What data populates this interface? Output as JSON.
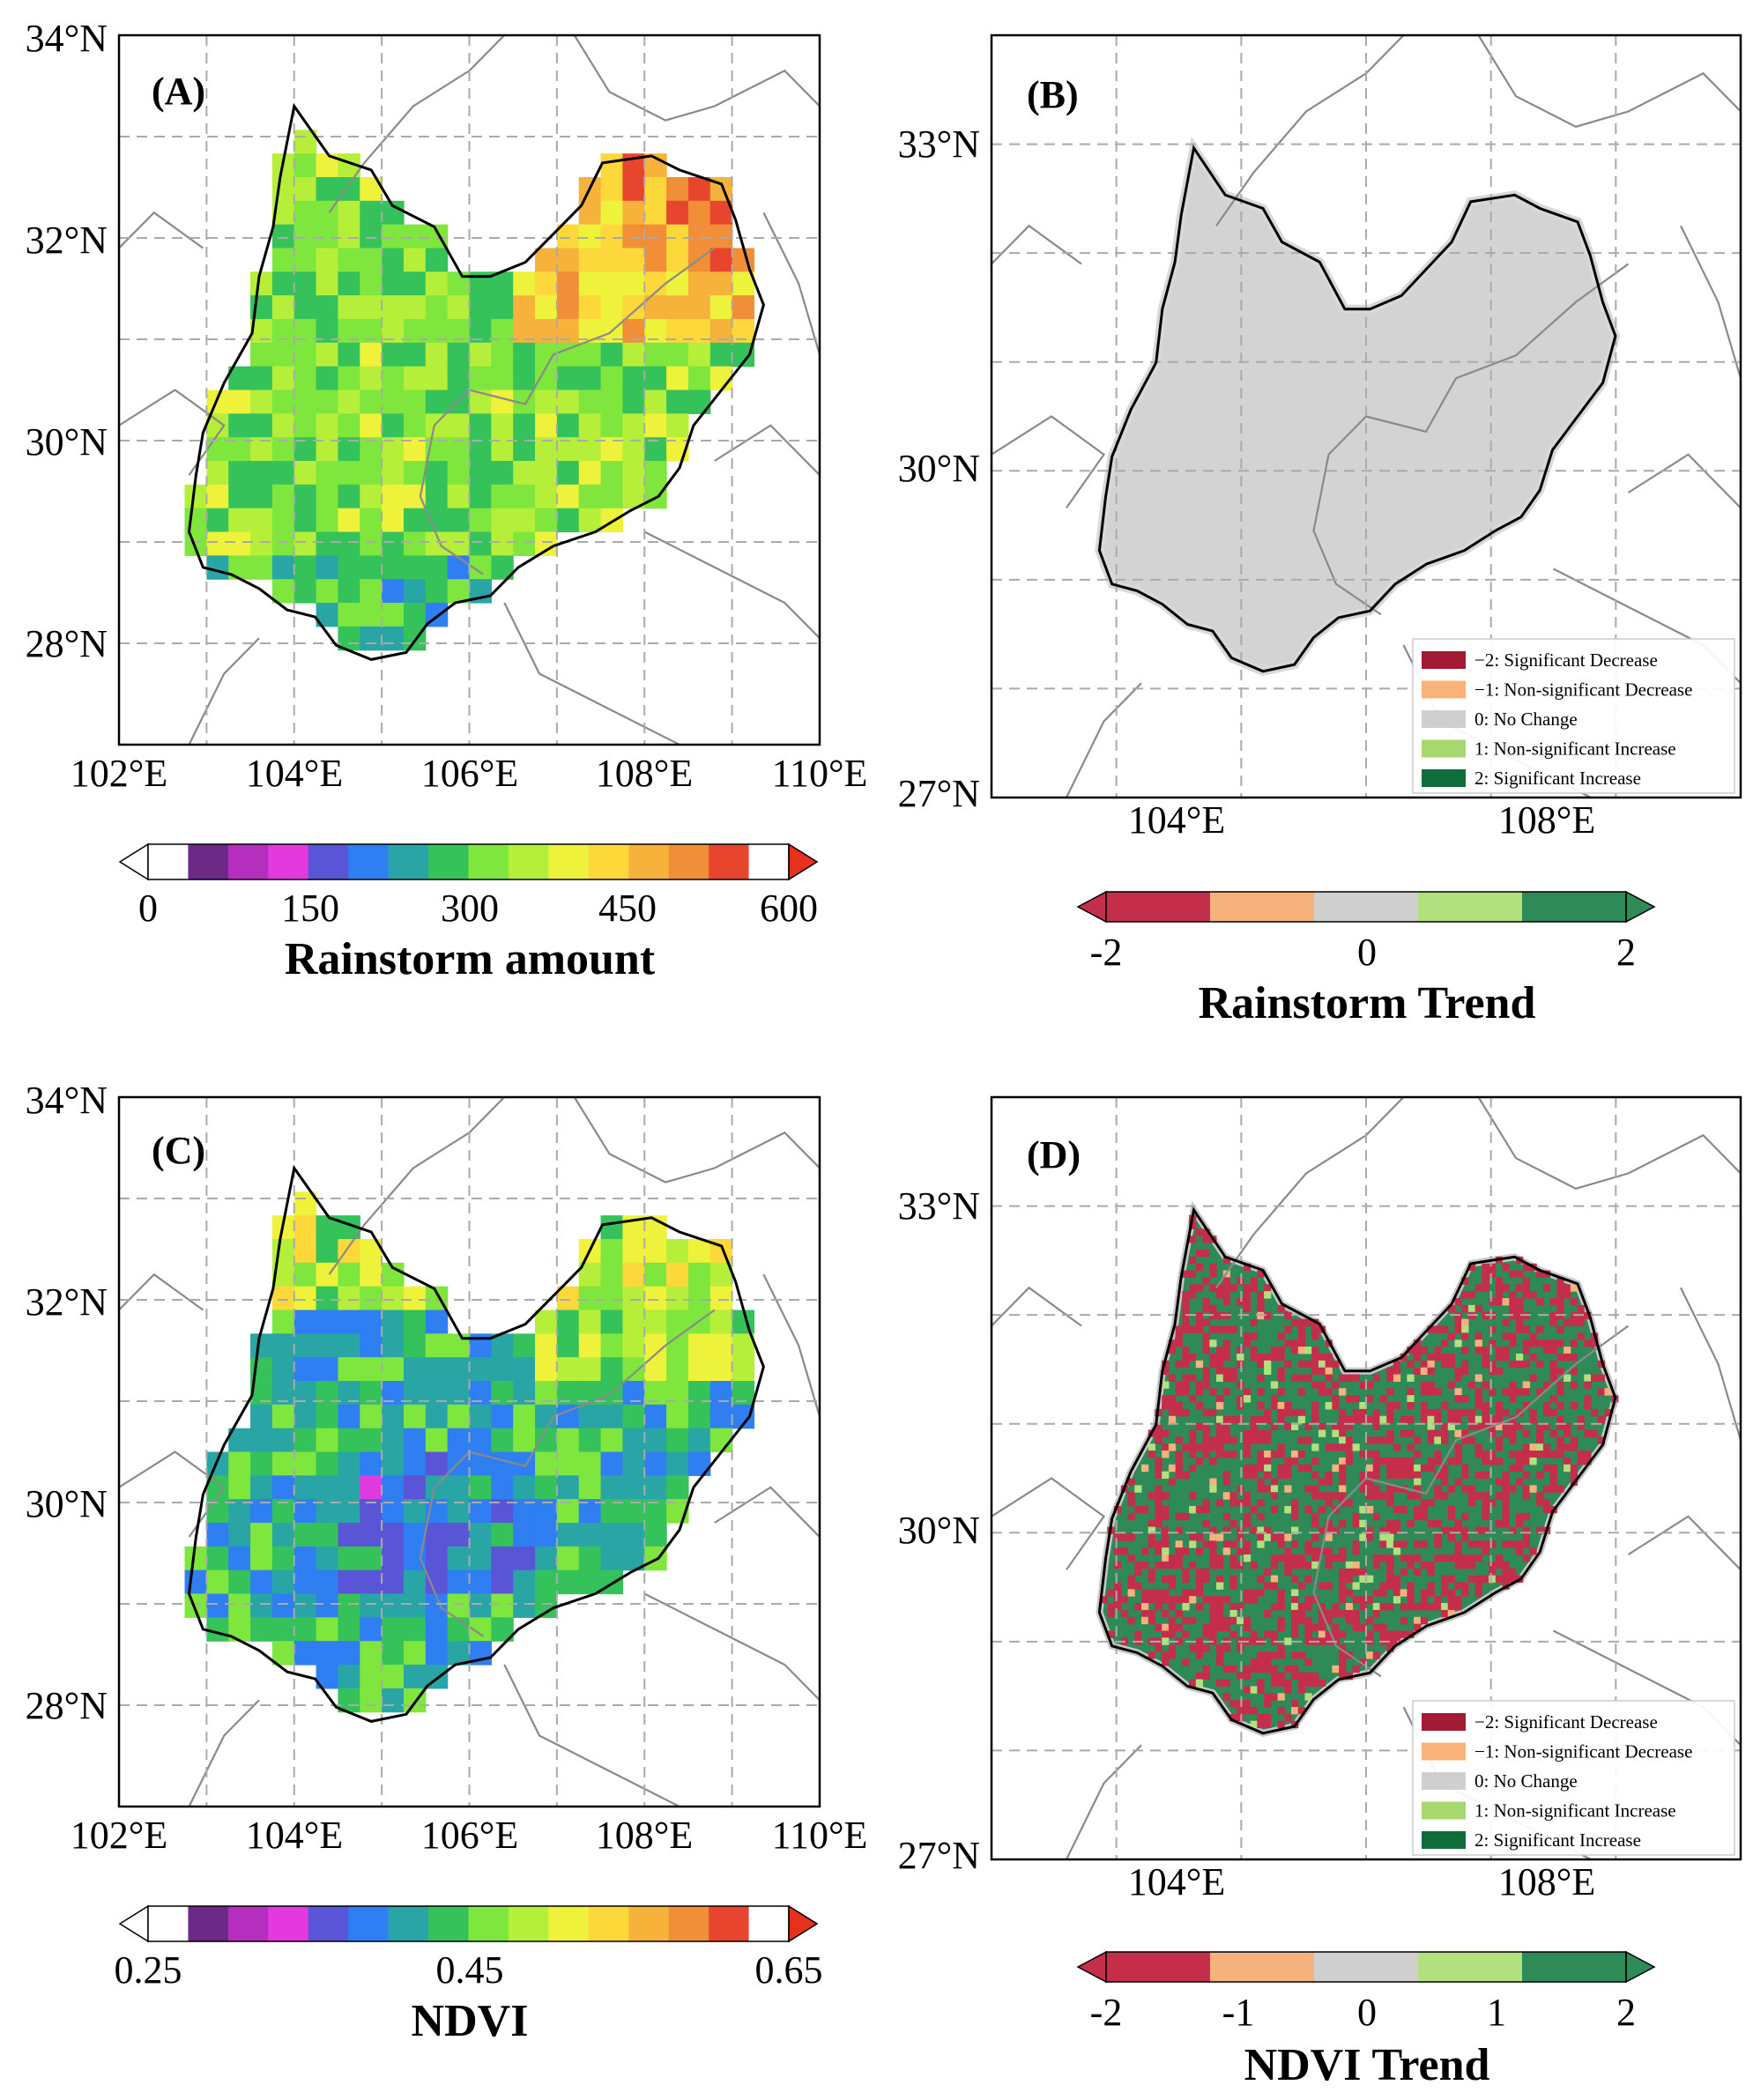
{
  "panels": [
    {
      "id": "A",
      "label": "(A)",
      "lat_ticks": [
        "34°N",
        "32°N",
        "30°N",
        "28°N"
      ],
      "lon_ticks": [
        "102°E",
        "104°E",
        "106°E",
        "108°E",
        "110°E"
      ],
      "colorbar": {
        "title": "Rainstorm amount",
        "ticks": [
          "0",
          "150",
          "300",
          "450",
          "600"
        ]
      }
    },
    {
      "id": "B",
      "label": "(B)",
      "lat_ticks": [
        "33°N",
        "30°N",
        "27°N"
      ],
      "lon_ticks": [
        "104°E",
        "108°E"
      ],
      "colorbar": {
        "title": "Rainstorm Trend",
        "ticks": [
          "-2",
          "0",
          "2"
        ]
      }
    },
    {
      "id": "C",
      "label": "(C)",
      "lat_ticks": [
        "34°N",
        "32°N",
        "30°N",
        "28°N"
      ],
      "lon_ticks": [
        "102°E",
        "104°E",
        "106°E",
        "108°E",
        "110°E"
      ],
      "colorbar": {
        "title": "NDVI",
        "ticks": [
          "0.25",
          "0.45",
          "0.65"
        ]
      }
    },
    {
      "id": "D",
      "label": "(D)",
      "lat_ticks": [
        "33°N",
        "30°N",
        "27°N"
      ],
      "lon_ticks": [
        "104°E",
        "108°E"
      ],
      "colorbar": {
        "title": "NDVI Trend",
        "ticks": [
          "-2",
          "-1",
          "0",
          "1",
          "2"
        ]
      }
    }
  ],
  "trend_legend": [
    {
      "label": "−2: Significant Decrease",
      "color": "#a31a34"
    },
    {
      "label": "−1: Non-significant Decrease",
      "color": "#f9b27a"
    },
    {
      "label": "0: No Change",
      "color": "#cfcfcf"
    },
    {
      "label": "1: Non-significant Increase",
      "color": "#a6d86e"
    },
    {
      "label": "2: Significant Increase",
      "color": "#0f6d3a"
    }
  ],
  "colors": {
    "amount_scale": [
      "#6b2a86",
      "#b52fbf",
      "#e33ae0",
      "#5a55d6",
      "#2f7ef2",
      "#2aa5a5",
      "#35c25a",
      "#7ee63c",
      "#b5ef3a",
      "#eef23a",
      "#fdd83a",
      "#f7b23b",
      "#f08f37",
      "#e8452e"
    ],
    "trend_scale": [
      "#c42e4a",
      "#f6b27c",
      "#cfcfcf",
      "#b3e07f",
      "#2e8b58"
    ],
    "gray_region": "#d3d3d3"
  },
  "chart_data": [
    {
      "type": "heatmap",
      "title": "(A)",
      "colorbar_label": "Rainstorm amount",
      "value_range": [
        0,
        600
      ],
      "xlim": [
        102,
        110
      ],
      "ylim": [
        27,
        34
      ],
      "x_unit": "°E",
      "y_unit": "°N"
    },
    {
      "type": "heatmap",
      "title": "(B)",
      "colorbar_label": "Rainstorm Trend",
      "value_range": [
        -2,
        2
      ],
      "categories": [
        -2,
        -1,
        0,
        1,
        2
      ],
      "dominant_class": 0
    },
    {
      "type": "heatmap",
      "title": "(C)",
      "colorbar_label": "NDVI",
      "value_range": [
        0.25,
        0.65
      ],
      "xlim": [
        102,
        110
      ],
      "ylim": [
        27,
        34
      ]
    },
    {
      "type": "heatmap",
      "title": "(D)",
      "colorbar_label": "NDVI Trend",
      "value_range": [
        -2,
        2
      ],
      "categories": [
        -2,
        -1,
        0,
        1,
        2
      ]
    }
  ]
}
